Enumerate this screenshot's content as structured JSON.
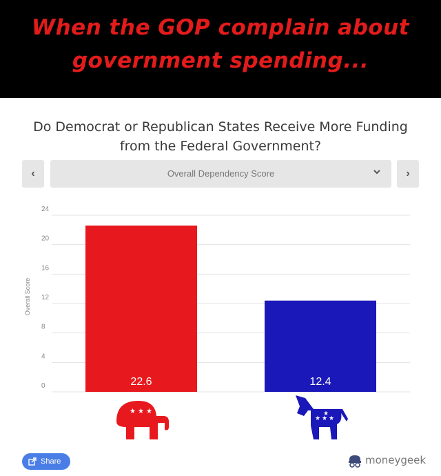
{
  "banner": {
    "line1": "When the GOP complain about",
    "line2": "government spending..."
  },
  "chart_header": {
    "title_line1": "Do Democrat or Republican States Receive More Funding",
    "title_line2": "from the Federal Government?"
  },
  "selector": {
    "prev_label": "‹",
    "next_label": "›",
    "selected_option": "Overall Dependency Score"
  },
  "colors": {
    "republican": "#e8191e",
    "democrat": "#1a18b8",
    "banner_text": "#e31b1b",
    "share_button": "#4a7ee6"
  },
  "chart_data": {
    "type": "bar",
    "categories": [
      "Republican",
      "Democrat"
    ],
    "values": [
      22.6,
      12.4
    ],
    "value_labels": [
      "22.6",
      "12.4"
    ],
    "ylabel": "Overall Score",
    "ylim": [
      0,
      24
    ],
    "yticks": [
      0,
      4,
      8,
      12,
      16,
      20,
      24
    ],
    "grid": true,
    "category_icons": [
      "elephant-icon",
      "donkey-icon"
    ]
  },
  "footer": {
    "share_label": "Share",
    "brand_prefix": "money",
    "brand_suffix": "geek"
  }
}
